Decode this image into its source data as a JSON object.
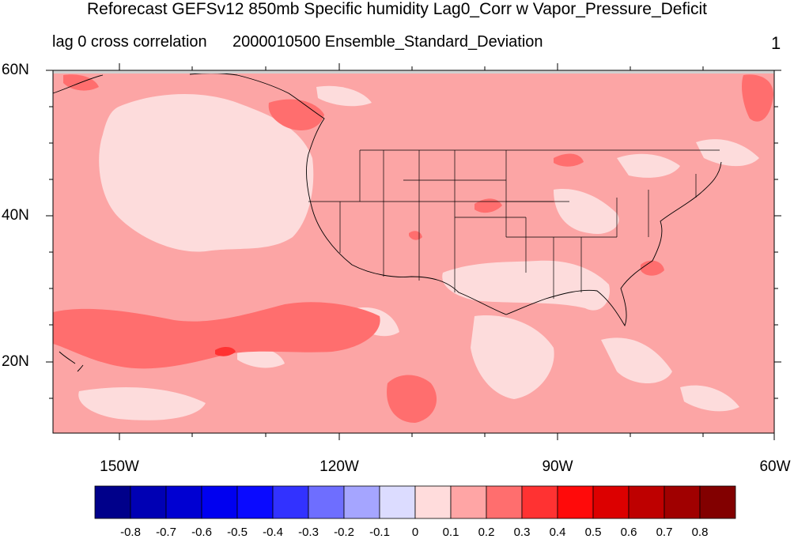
{
  "title": "Reforecast GEFSv12 850mb Specific humidity Lag0_Corr w Vapor_Pressure_Deficit",
  "subtitle": {
    "left": "lag 0 cross correlation",
    "center": "2000010500 Ensemble_Standard_Deviation",
    "right": "1"
  },
  "map": {
    "lat_labels": [
      "60N",
      "40N",
      "20N"
    ],
    "lon_labels": [
      "150W",
      "120W",
      "90W",
      "60W"
    ],
    "region": "Contiguous United States and eastern North Pacific",
    "background_color": "#fca5a5"
  },
  "colorbar": {
    "labels": [
      "-0.8",
      "-0.7",
      "-0.6",
      "-0.5",
      "-0.4",
      "-0.3",
      "-0.2",
      "-0.1",
      "0",
      "0.1",
      "0.2",
      "0.3",
      "0.4",
      "0.5",
      "0.6",
      "0.7",
      "0.8"
    ],
    "colors": [
      "#00008a",
      "#0000b4",
      "#0000d2",
      "#0000f0",
      "#0a0aff",
      "#3232ff",
      "#6e6eff",
      "#a5a5ff",
      "#dcdcff",
      "#ffdcdc",
      "#ffa5a5",
      "#ff6e6e",
      "#ff3232",
      "#ff0a0a",
      "#dc0000",
      "#be0000",
      "#a00000",
      "#820000"
    ]
  }
}
